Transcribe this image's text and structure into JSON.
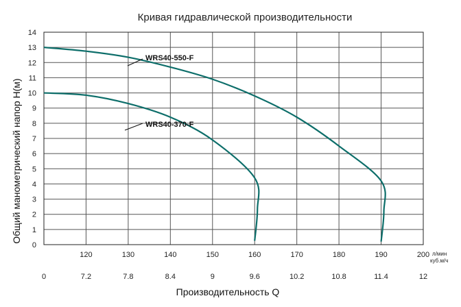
{
  "chart_data": {
    "type": "line",
    "title": "Кривая гидравлической производительности",
    "xlabel": "Производительность Q",
    "ylabel": "Общий манометрический напор H(м)",
    "x_primary": {
      "unit": "л/мин",
      "ticks": [
        0,
        120,
        130,
        140,
        150,
        160,
        170,
        180,
        190,
        200
      ],
      "tick_labels": [
        "",
        "120",
        "130",
        "140",
        "150",
        "160",
        "170",
        "180",
        "190",
        "200"
      ]
    },
    "x_secondary": {
      "unit": "куб.м/ч",
      "tick_labels": [
        "0",
        "7.2",
        "7.8",
        "8.4",
        "9",
        "9.6",
        "10.2",
        "10.8",
        "11.4",
        "12"
      ]
    },
    "ylim": [
      0,
      14
    ],
    "y_ticks": [
      0,
      1,
      2,
      3,
      4,
      5,
      6,
      7,
      8,
      9,
      10,
      11,
      12,
      13,
      14
    ],
    "grid": true,
    "series": [
      {
        "name": "WRS40-550-F",
        "x": [
          0,
          120,
          130,
          140,
          150,
          160,
          170,
          180,
          190
        ],
        "y": [
          13.0,
          12.75,
          12.35,
          11.7,
          10.9,
          9.8,
          8.4,
          6.5,
          4.2
        ],
        "label_at": [
          0,
          12.9
        ]
      },
      {
        "name": "WRS40-370-F",
        "x": [
          0,
          120,
          130,
          140,
          150,
          160
        ],
        "y": [
          10.0,
          9.85,
          9.3,
          8.4,
          6.9,
          4.4
        ],
        "label_at": [
          0,
          9.9
        ]
      }
    ],
    "curve_ends": [
      {
        "series": "WRS40-550-F",
        "x": 190,
        "y": 0.2
      },
      {
        "series": "WRS40-370-F",
        "x": 160,
        "y": 0.25
      }
    ],
    "colors": {
      "curve": "#0d6e6a",
      "grid": "#555555"
    }
  }
}
